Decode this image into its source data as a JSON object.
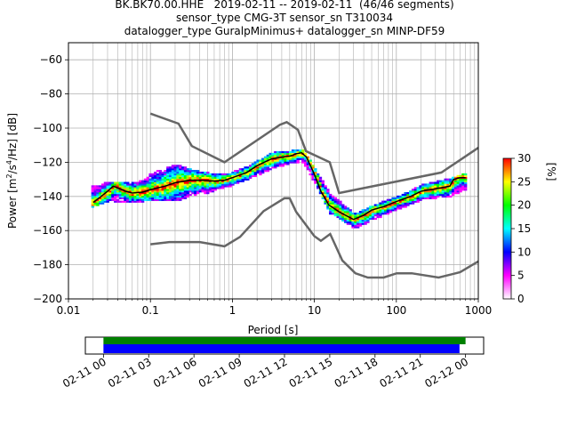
{
  "titles": {
    "line1": "BK.BK70.00.HHE   2019-02-11 -- 2019-02-11  (46/46 segments)",
    "line2": "sensor_type CMG-3T sensor_sn T310034",
    "line3": "datalogger_type GuralpMinimus+ datalogger_sn MINP-DF59"
  },
  "chart_data": {
    "type": "psd-probabilistic",
    "xlabel": "Period [s]",
    "ylabel_prefix": "Power [m",
    "ylabel_unit": "[dB]",
    "xscale": "log",
    "xlim": [
      0.01,
      1000
    ],
    "ylim": [
      -200,
      -50
    ],
    "x_ticks": [
      0.01,
      0.1,
      1,
      10,
      100,
      1000
    ],
    "x_tick_labels": [
      "0.01",
      "0.1",
      "1",
      "10",
      "100",
      "1000"
    ],
    "y_ticks": [
      -200,
      -180,
      -160,
      -140,
      -120,
      -100,
      -80,
      -60
    ],
    "y_tick_labels": [
      "−200",
      "−180",
      "−160",
      "−140",
      "−120",
      "−100",
      "−80",
      "−60"
    ],
    "grid": true,
    "high_noise_model": [
      [
        0.1,
        -91.5
      ],
      [
        0.22,
        -97.4
      ],
      [
        0.32,
        -110.5
      ],
      [
        0.8,
        -120
      ],
      [
        3.8,
        -98
      ],
      [
        4.6,
        -96.5
      ],
      [
        6.3,
        -101
      ],
      [
        7.9,
        -113.5
      ],
      [
        15.4,
        -120
      ],
      [
        20,
        -138
      ],
      [
        354.8,
        -126
      ],
      [
        1000,
        -111.5
      ]
    ],
    "low_noise_model": [
      [
        0.1,
        -168
      ],
      [
        0.17,
        -166.7
      ],
      [
        0.4,
        -166.7
      ],
      [
        0.8,
        -169.2
      ],
      [
        1.24,
        -163.7
      ],
      [
        2.4,
        -148.6
      ],
      [
        4.3,
        -141.1
      ],
      [
        5.0,
        -141.1
      ],
      [
        6.0,
        -149
      ],
      [
        10,
        -163.3
      ],
      [
        12,
        -166
      ],
      [
        15.6,
        -162
      ],
      [
        21.9,
        -177.5
      ],
      [
        31.6,
        -185
      ],
      [
        45,
        -187.5
      ],
      [
        70,
        -187.5
      ],
      [
        101,
        -185
      ],
      [
        154,
        -185
      ],
      [
        328,
        -187.5
      ],
      [
        600,
        -184.4
      ],
      [
        1000,
        -178
      ]
    ],
    "mode_curve": [
      [
        0.02,
        -143.5
      ],
      [
        0.025,
        -140
      ],
      [
        0.03,
        -137
      ],
      [
        0.035,
        -134
      ],
      [
        0.04,
        -135
      ],
      [
        0.05,
        -137
      ],
      [
        0.06,
        -138
      ],
      [
        0.08,
        -137.5
      ],
      [
        0.1,
        -136
      ],
      [
        0.15,
        -134
      ],
      [
        0.2,
        -132
      ],
      [
        0.3,
        -130.5
      ],
      [
        0.4,
        -130.5
      ],
      [
        0.6,
        -131
      ],
      [
        0.8,
        -130.5
      ],
      [
        1.0,
        -129
      ],
      [
        1.5,
        -126
      ],
      [
        2.0,
        -122
      ],
      [
        3.0,
        -118
      ],
      [
        4.0,
        -117
      ],
      [
        5.0,
        -116.5
      ],
      [
        6.0,
        -115
      ],
      [
        7.0,
        -114.5
      ],
      [
        8.0,
        -117
      ],
      [
        10,
        -127
      ],
      [
        12,
        -137
      ],
      [
        15,
        -145
      ],
      [
        20,
        -149
      ],
      [
        25,
        -151.5
      ],
      [
        30,
        -153.5
      ],
      [
        40,
        -151
      ],
      [
        50,
        -148
      ],
      [
        70,
        -146
      ],
      [
        100,
        -143
      ],
      [
        150,
        -140
      ],
      [
        200,
        -137
      ],
      [
        300,
        -135.5
      ],
      [
        450,
        -134
      ],
      [
        500,
        -130
      ],
      [
        600,
        -129
      ],
      [
        700,
        -129
      ]
    ],
    "psd_cloud_band": [
      [
        0.02,
        -146,
        -134
      ],
      [
        0.03,
        -143,
        -131
      ],
      [
        0.05,
        -144,
        -132
      ],
      [
        0.08,
        -143,
        -130
      ],
      [
        0.1,
        -142,
        -126
      ],
      [
        0.2,
        -143,
        -121
      ],
      [
        0.3,
        -140,
        -124
      ],
      [
        0.5,
        -138,
        -126
      ],
      [
        0.8,
        -135,
        -127
      ],
      [
        1.5,
        -130,
        -122
      ],
      [
        3.0,
        -124,
        -114
      ],
      [
        5.0,
        -121,
        -113
      ],
      [
        7.0,
        -120,
        -112
      ],
      [
        10,
        -133,
        -124
      ],
      [
        15,
        -150,
        -138
      ],
      [
        30,
        -159,
        -150
      ],
      [
        50,
        -154,
        -145
      ],
      [
        100,
        -148,
        -140
      ],
      [
        200,
        -142,
        -133
      ],
      [
        450,
        -140,
        -129
      ],
      [
        700,
        -136,
        -126
      ]
    ],
    "colorbar": {
      "label": "[%]",
      "ticks": [
        0,
        5,
        10,
        15,
        20,
        25,
        30
      ],
      "tick_labels": [
        "0",
        "5",
        "10",
        "15",
        "20",
        "25",
        "30"
      ],
      "range": [
        0,
        30
      ],
      "colors": [
        "#ffffff",
        "#ff00ff",
        "#0000ff",
        "#00ffff",
        "#00ff00",
        "#ffff00",
        "#ff0000"
      ]
    },
    "coverage": {
      "ticks": [
        "02-11 00",
        "02-11 03",
        "02-11 06",
        "02-11 09",
        "02-11 12",
        "02-11 15",
        "02-11 18",
        "02-11 21",
        "02-12 00"
      ],
      "tick_hours": [
        0,
        3,
        6,
        9,
        12,
        15,
        18,
        21,
        24
      ],
      "range_hours": [
        -1.2,
        25.2
      ],
      "used_data_hours": [
        0,
        24
      ],
      "segments_hours": [
        0,
        23.6
      ],
      "used_color": "#008000",
      "segments_color": "#0000ff"
    }
  }
}
